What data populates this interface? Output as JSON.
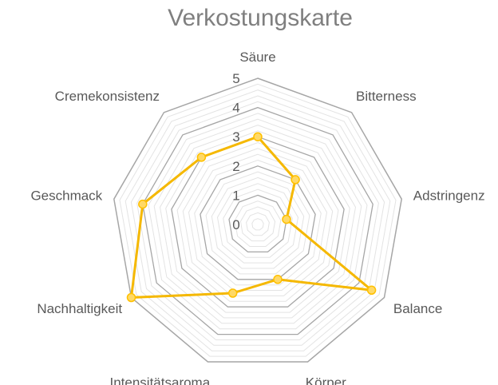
{
  "chart_data": {
    "type": "radar",
    "title": "Verkostungskarte",
    "categories": [
      "Säure",
      "Bitterness",
      "Adstringenz",
      "Balance",
      "Körper",
      "Intensitätsaroma",
      "Nachhaltigkeit",
      "Geschmack",
      "Cremekonsistenz"
    ],
    "series": [
      {
        "values": [
          3,
          2,
          1,
          4.5,
          2,
          2.5,
          5,
          4,
          3
        ]
      }
    ],
    "rlim": [
      0,
      5
    ],
    "ticks": [
      "0",
      "1",
      "2",
      "3",
      "4",
      "5"
    ],
    "minor_gridlines": true,
    "legend": "none",
    "colors": {
      "series": "#ffc000",
      "series_line": "#f5b800",
      "major_grid": "#a6a6a6",
      "minor_grid": "#e3e3e3"
    }
  }
}
